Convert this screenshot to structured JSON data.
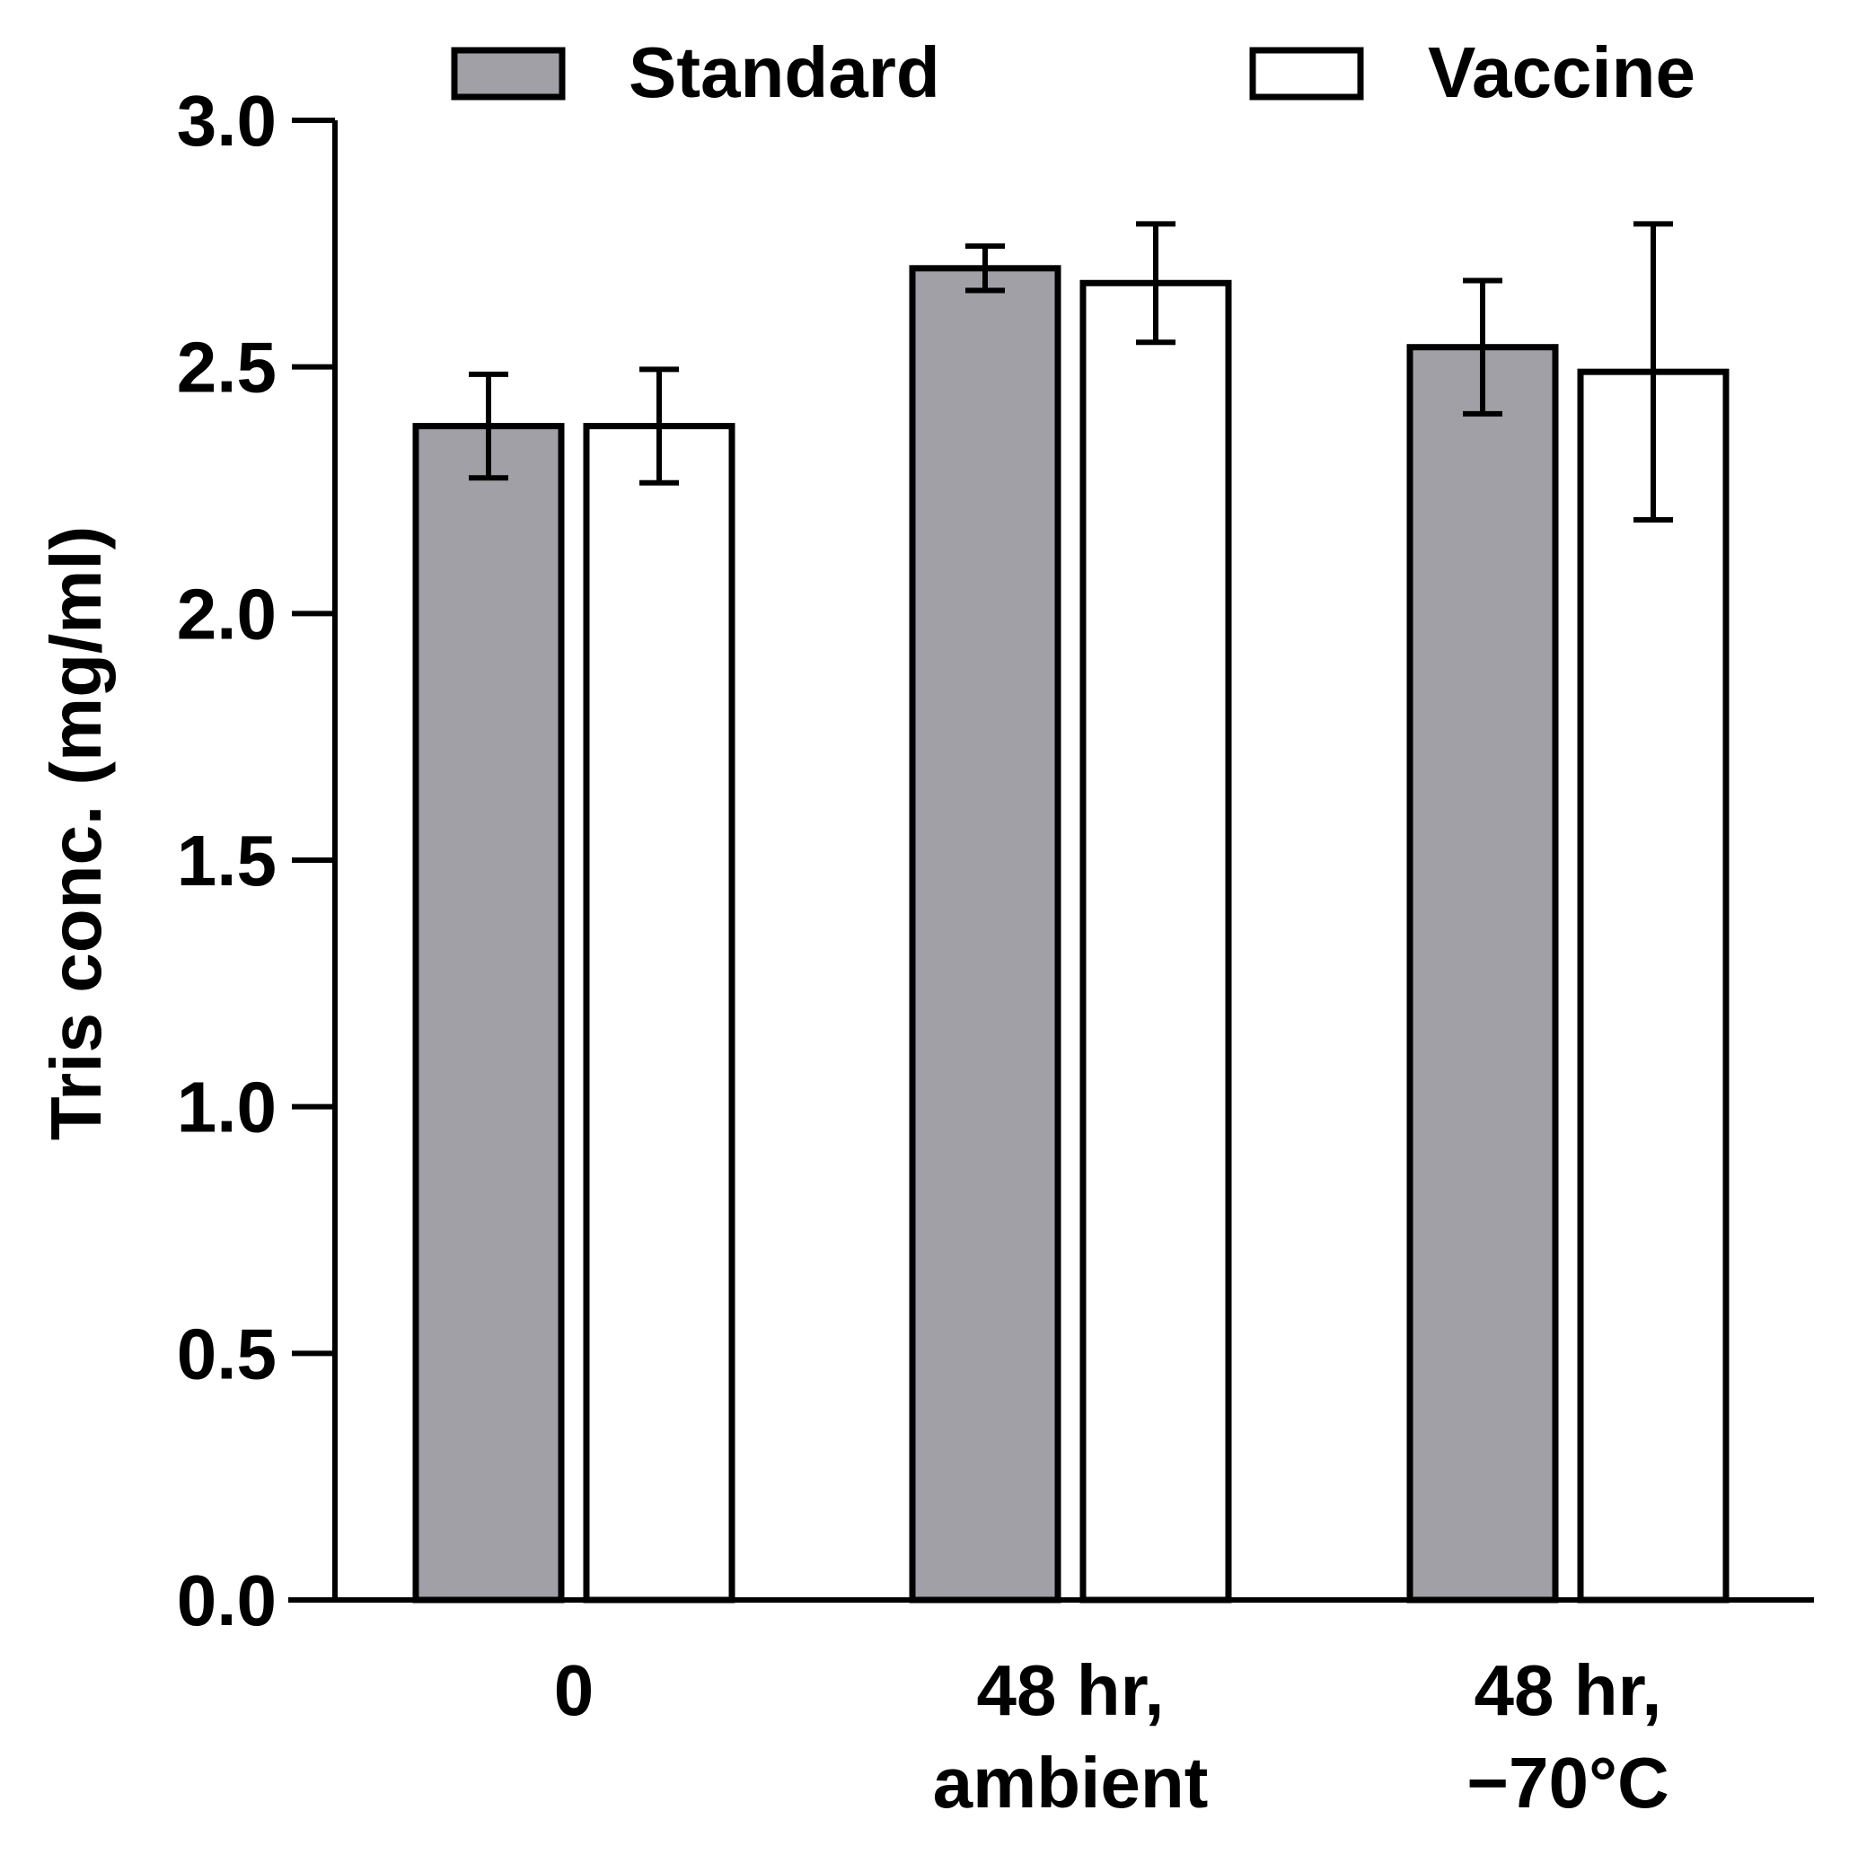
{
  "chart_data": {
    "type": "bar",
    "categories": [
      [
        "0"
      ],
      [
        "48 hr,",
        "ambient"
      ],
      [
        "48 hr,",
        "−70°C"
      ]
    ],
    "series": [
      {
        "name": "Standard",
        "color": "#a0a0a6",
        "values": [
          2.38,
          2.7,
          2.54
        ],
        "errors": [
          0.105,
          0.045,
          0.135
        ]
      },
      {
        "name": "Vaccine",
        "color": "#ffffff",
        "values": [
          2.38,
          2.67,
          2.49
        ],
        "errors": [
          0.115,
          0.12,
          0.3
        ]
      }
    ],
    "ylabel": "Tris conc. (mg/ml)",
    "xlabel": "",
    "title": "",
    "ylim": [
      0.0,
      3.0
    ],
    "yticks": [
      "0.0",
      "0.5",
      "1.0",
      "1.5",
      "2.0",
      "2.5",
      "3.0"
    ],
    "grid": false,
    "legend_position": "top"
  }
}
